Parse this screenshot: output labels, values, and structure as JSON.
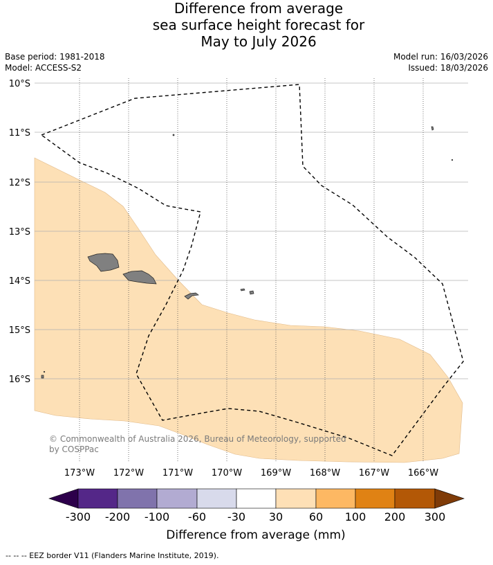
{
  "title": {
    "line1": "Difference from average",
    "line2": "sea surface height forecast for",
    "line3": "May to July 2026"
  },
  "info": {
    "base_period": "Base period: 1981-2018",
    "model": "Model: ACCESS-S2",
    "model_run": "Model run: 16/03/2026",
    "issued": "Issued: 18/03/2026"
  },
  "map": {
    "lat_labels": [
      "10°S",
      "11°S",
      "12°S",
      "13°S",
      "14°S",
      "15°S",
      "16°S"
    ],
    "lon_labels": [
      "173°W",
      "172°W",
      "171°W",
      "170°W",
      "169°W",
      "168°W",
      "167°W",
      "166°W"
    ],
    "land_color": "#808080",
    "anomaly_fill_color": "#fde0b6",
    "copyright_line1": "© Commonwealth of Australia 2026, Bureau of Meteorology, supported",
    "copyright_line2": "by COSPPac"
  },
  "colorbar": {
    "ticks": [
      "-300",
      "-200",
      "-100",
      "-60",
      "-30",
      "30",
      "60",
      "100",
      "200",
      "300"
    ],
    "colors": [
      "#2d004b",
      "#542788",
      "#8073ac",
      "#b2abd2",
      "#d8daeb",
      "#ffffff",
      "#fee0b6",
      "#fdb863",
      "#e08214",
      "#b35806",
      "#7f3b08"
    ],
    "label": "Difference from average (mm)"
  },
  "footnote": "--  --  -- EEZ border V11 (Flanders Marine Institute, 2019)."
}
